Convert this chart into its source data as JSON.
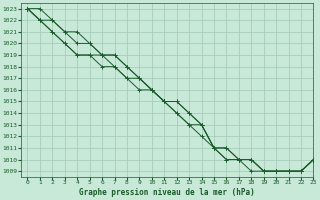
{
  "title": "Graphe pression niveau de la mer (hPa)",
  "background_color": "#c8e8d8",
  "grid_color": "#a0c8b8",
  "line_color": "#1a5c2a",
  "xlim": [
    -0.5,
    23
  ],
  "ylim": [
    1008.5,
    1023.5
  ],
  "xticks": [
    0,
    1,
    2,
    3,
    4,
    5,
    6,
    7,
    8,
    9,
    10,
    11,
    12,
    13,
    14,
    15,
    16,
    17,
    18,
    19,
    20,
    21,
    22,
    23
  ],
  "yticks": [
    1009,
    1010,
    1011,
    1012,
    1013,
    1014,
    1015,
    1016,
    1017,
    1018,
    1019,
    1020,
    1021,
    1022,
    1023
  ],
  "series": [
    [
      1023,
      1023,
      1022,
      1021,
      1021,
      1020,
      1019,
      1019,
      1018,
      1017,
      1016,
      1015,
      1014,
      1013,
      1012,
      1011,
      1010,
      1010,
      1009,
      1009,
      1009,
      1009,
      1009,
      1010
    ],
    [
      1023,
      1022,
      1022,
      1021,
      1020,
      1020,
      1019,
      1019,
      1018,
      1017,
      1016,
      1015,
      1014,
      1013,
      1013,
      1011,
      1010,
      1010,
      1010,
      1009,
      1009,
      1009,
      1009,
      1010
    ],
    [
      1023,
      1022,
      1021,
      1020,
      1019,
      1019,
      1019,
      1018,
      1017,
      1017,
      1016,
      1015,
      1015,
      1014,
      1013,
      1011,
      1011,
      1010,
      1010,
      1009,
      1009,
      1009,
      1009,
      1010
    ],
    [
      1023,
      1022,
      1021,
      1020,
      1019,
      1019,
      1018,
      1018,
      1017,
      1016,
      1016,
      1015,
      1015,
      1014,
      1013,
      1011,
      1011,
      1010,
      1010,
      1009,
      1009,
      1009,
      1009,
      1010
    ]
  ]
}
